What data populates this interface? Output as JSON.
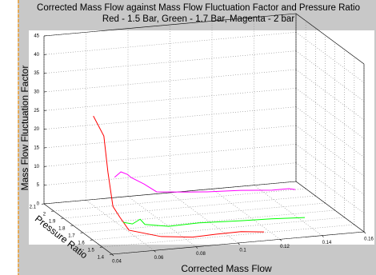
{
  "chart_data": {
    "type": "line3d",
    "title": "Corrected Mass Flow against Mass Flow Fluctuation Factor and Pressure Ratio",
    "subtitle": "Red - 1.5 Bar, Green - 1.7 Bar, Magenta - 2 bar",
    "xlabel": "Corrected Mass Flow",
    "ylabel": "Pressure Ratio",
    "zlabel": "Mass Flow Fluctuation Factor",
    "xlim": [
      0.04,
      0.16
    ],
    "ylim": [
      1.4,
      2.1
    ],
    "zlim": [
      0,
      45
    ],
    "xticks": [
      0.04,
      0.06,
      0.08,
      0.1,
      0.12,
      0.14,
      0.16
    ],
    "yticks": [
      1.4,
      1.5,
      1.6,
      1.7,
      1.8,
      1.9,
      2,
      2.1
    ],
    "zticks": [
      0,
      5,
      10,
      15,
      20,
      25,
      30,
      35,
      40,
      45
    ],
    "grid": true,
    "series": [
      {
        "color": "#ff0000",
        "x": [
          0.045,
          0.05,
          0.051,
          0.052,
          0.053,
          0.055,
          0.068,
          0.083,
          0.095,
          0.107,
          0.117
        ],
        "y": [
          1.7,
          1.7,
          1.68,
          1.65,
          1.6,
          1.55,
          1.5,
          1.5,
          1.52,
          1.52,
          1.5
        ],
        "z": [
          31,
          25.4,
          16.1,
          7.4,
          5.4,
          2.8,
          1.4,
          0.5,
          0.3,
          0.4,
          0.2
        ]
      },
      {
        "color": "#00ff00",
        "x": [
          0.062,
          0.065,
          0.071,
          0.07,
          0.079,
          0.094,
          0.113,
          0.127,
          0.142
        ],
        "y": [
          1.76,
          1.73,
          1.78,
          1.71,
          1.66,
          1.67,
          1.65,
          1.64,
          1.62
        ],
        "z": [
          0.5,
          0.5,
          0.5,
          0.5,
          0.5,
          0.5,
          0.5,
          0.5,
          0.5
        ]
      },
      {
        "color": "#ff00ff",
        "x": [
          0.069,
          0.072,
          0.075,
          0.077,
          0.083,
          0.089,
          0.102,
          0.113,
          0.129,
          0.144,
          0.152,
          0.155
        ],
        "y": [
          2,
          2,
          2,
          2,
          2,
          2,
          2,
          2,
          2,
          2,
          2,
          2
        ],
        "z": [
          7.6,
          8.9,
          8.1,
          7.1,
          5.1,
          2.7,
          2,
          1.5,
          1.1,
          0.4,
          0.4,
          0
        ]
      }
    ]
  }
}
